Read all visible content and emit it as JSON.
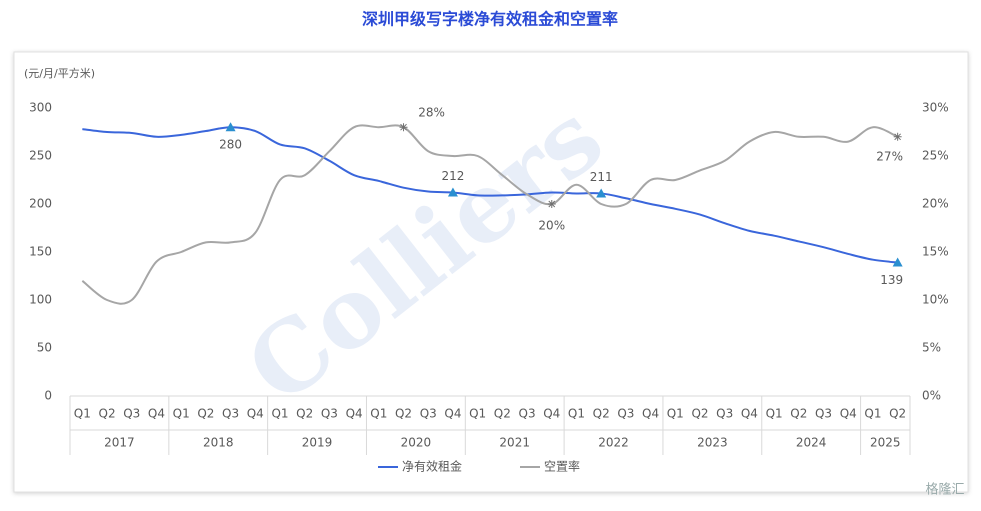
{
  "chart_data": {
    "type": "line",
    "title": "深圳甲级写字楼净有效租金和空置率",
    "y_unit_label": "(元/月/平方米)",
    "watermark": "Colliers",
    "source_logo": "格隆汇",
    "categories": [
      "Q1",
      "Q2",
      "Q3",
      "Q4",
      "Q1",
      "Q2",
      "Q3",
      "Q4",
      "Q1",
      "Q2",
      "Q3",
      "Q4",
      "Q1",
      "Q2",
      "Q3",
      "Q4",
      "Q1",
      "Q2",
      "Q3",
      "Q4",
      "Q1",
      "Q2",
      "Q3",
      "Q4",
      "Q1",
      "Q2",
      "Q3",
      "Q4",
      "Q1",
      "Q2",
      "Q3",
      "Q4",
      "Q1",
      "Q2"
    ],
    "groups": [
      "2017",
      "2018",
      "2019",
      "2020",
      "2021",
      "2022",
      "2023",
      "2024",
      "2025"
    ],
    "ylim": [
      0,
      300
    ],
    "yticks": [
      0,
      50,
      100,
      150,
      200,
      250,
      300
    ],
    "y2lim": [
      0,
      30
    ],
    "y2ticks": [
      {
        "value": 0,
        "label": "0%"
      },
      {
        "value": 5,
        "label": "5%"
      },
      {
        "value": 10,
        "label": "10%"
      },
      {
        "value": 15,
        "label": "15%"
      },
      {
        "value": 20,
        "label": "20%"
      },
      {
        "value": 25,
        "label": "25%"
      },
      {
        "value": 30,
        "label": "30%"
      }
    ],
    "legend": "bottom",
    "series": [
      {
        "name": "净有效租金",
        "color": "#3a66db",
        "values": [
          278,
          275,
          274,
          270,
          272,
          276,
          280,
          276,
          262,
          258,
          245,
          230,
          224,
          217,
          213,
          212,
          209,
          209,
          210,
          212,
          211,
          211,
          206,
          200,
          195,
          189,
          180,
          172,
          167,
          161,
          155,
          148,
          142,
          139
        ],
        "value_labels": [
          null,
          null,
          null,
          null,
          null,
          null,
          "280",
          null,
          null,
          null,
          null,
          null,
          null,
          null,
          null,
          "212",
          null,
          null,
          null,
          null,
          null,
          "211",
          null,
          null,
          null,
          null,
          null,
          null,
          null,
          null,
          null,
          null,
          null,
          "139"
        ]
      },
      {
        "name": "空置率",
        "color": "#a6a6a6",
        "axis": "y2",
        "values": [
          12,
          10,
          10,
          14,
          15,
          16,
          16,
          17,
          22.5,
          23,
          25.5,
          28,
          28,
          28,
          25.5,
          25,
          25,
          23,
          21,
          20,
          22,
          20,
          20,
          22.5,
          22.5,
          23.5,
          24.5,
          26.5,
          27.5,
          27,
          27,
          26.5,
          28,
          27
        ],
        "value_labels": [
          null,
          null,
          null,
          null,
          null,
          null,
          null,
          null,
          null,
          null,
          null,
          null,
          null,
          "28%",
          null,
          null,
          null,
          null,
          null,
          "20%",
          null,
          null,
          null,
          null,
          null,
          null,
          null,
          null,
          null,
          null,
          null,
          null,
          null,
          "27%"
        ]
      }
    ]
  }
}
